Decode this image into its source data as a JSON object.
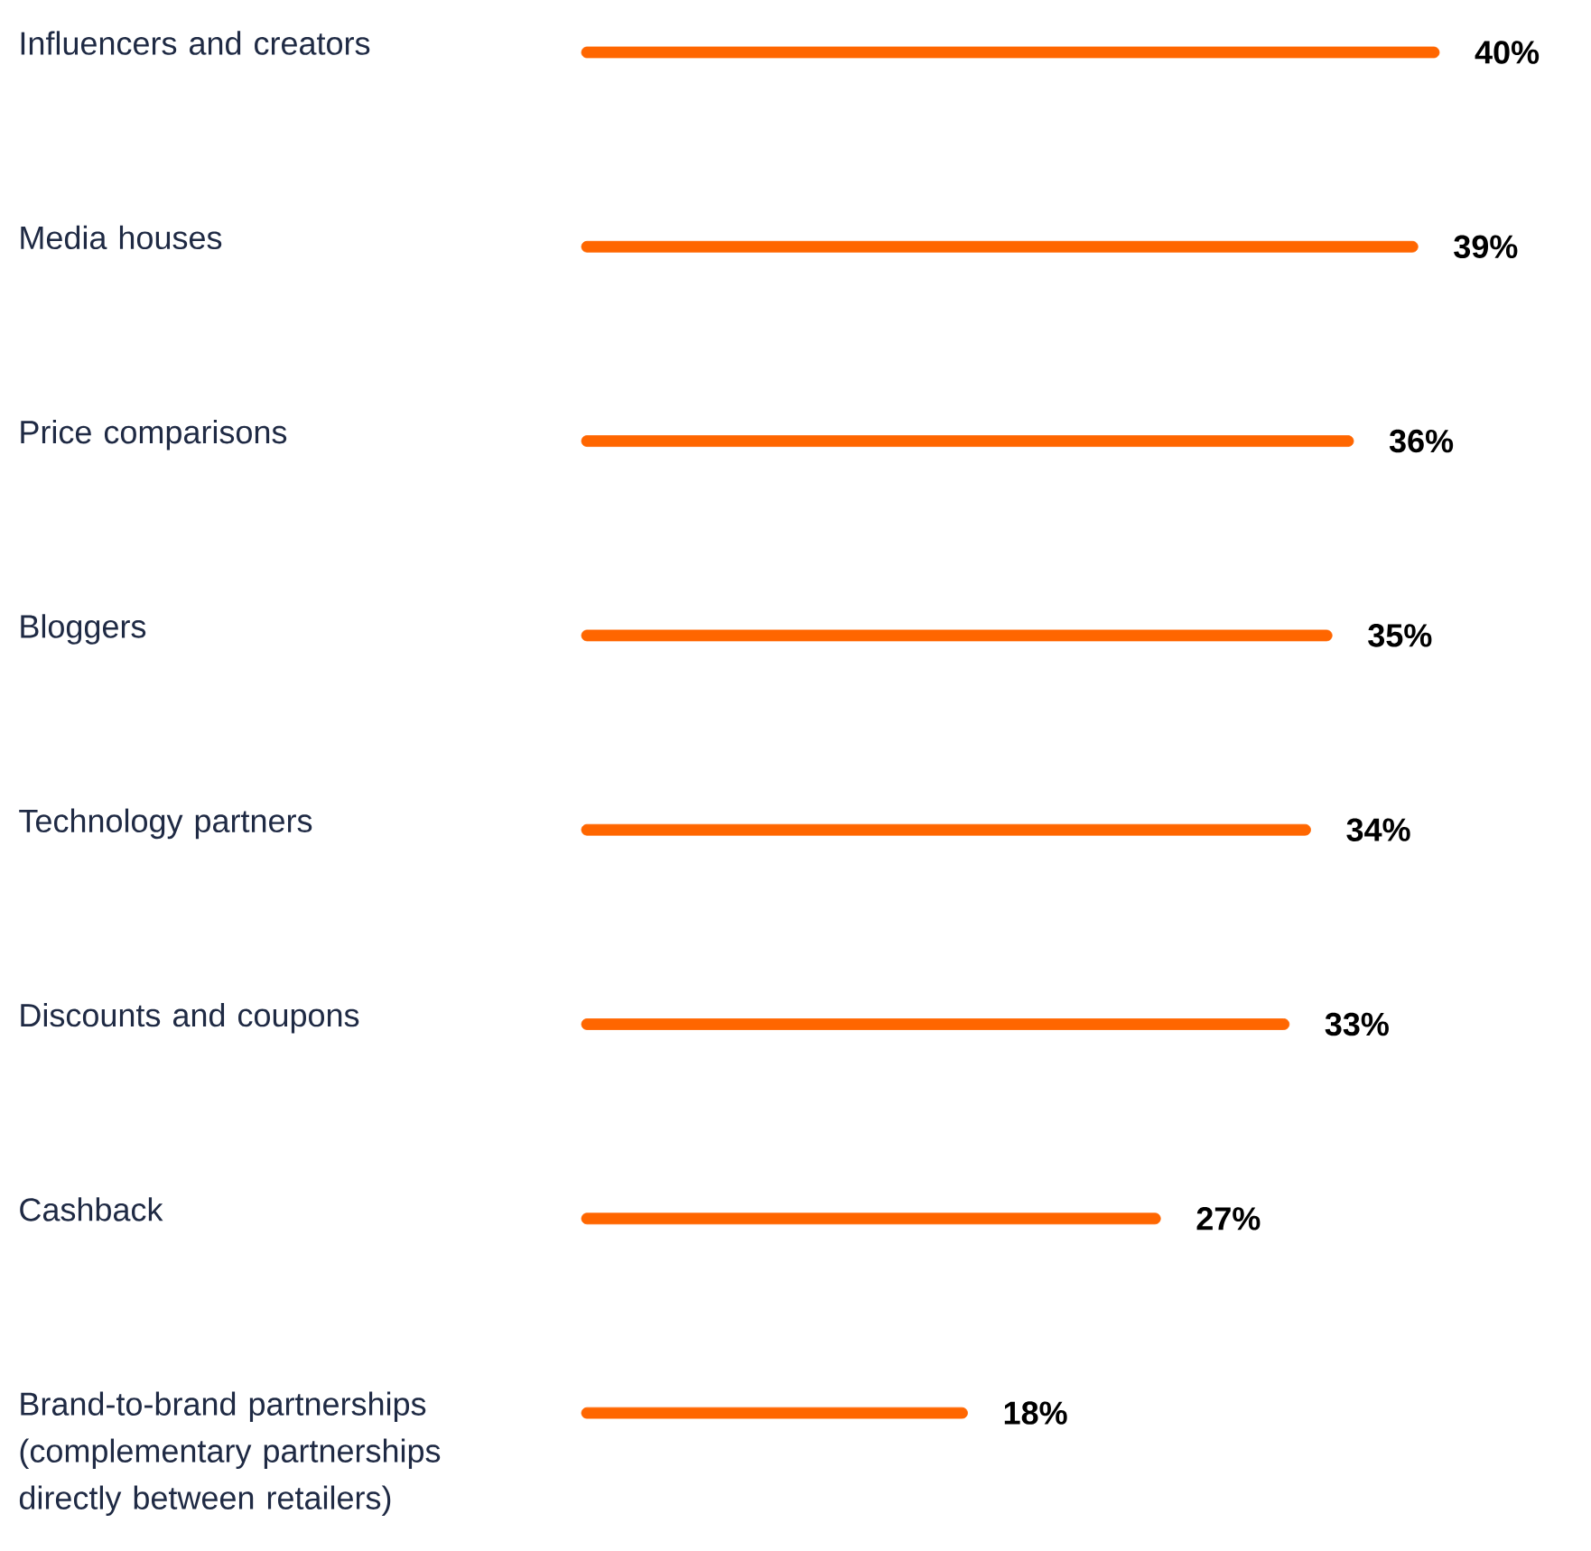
{
  "chart_data": {
    "type": "bar",
    "orientation": "horizontal",
    "categories": [
      "Influencers and creators",
      "Media houses",
      "Price comparisons",
      "Bloggers",
      "Technology partners",
      "Discounts and coupons",
      "Cashback",
      "Brand-to-brand partnerships (complementary partnerships directly between retailers)"
    ],
    "values": [
      40,
      39,
      36,
      35,
      34,
      33,
      27,
      18
    ],
    "value_labels": [
      "40%",
      "39%",
      "36%",
      "35%",
      "34%",
      "33%",
      "27%",
      "18%"
    ],
    "color": "#ff6600"
  }
}
